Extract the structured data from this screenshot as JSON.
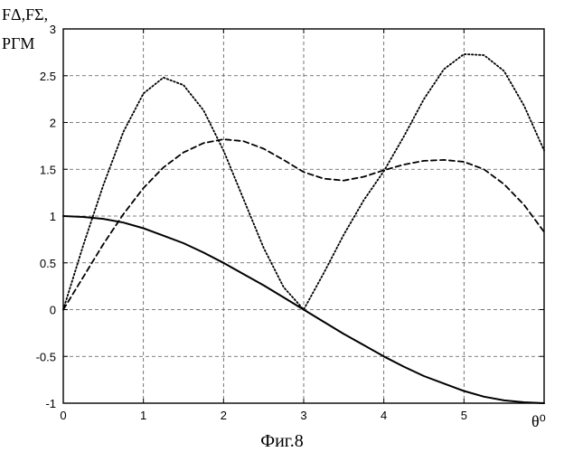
{
  "chart_data": {
    "type": "line",
    "ylabel_line1": "FΔ,FΣ,",
    "ylabel_line2": "PΓM",
    "xlabel": "θ⁰",
    "caption": "Фиг.8",
    "xlim": [
      0,
      6
    ],
    "ylim": [
      -1,
      3
    ],
    "xticks": [
      0,
      1,
      2,
      3,
      4,
      5
    ],
    "xtick_labels": [
      "0",
      "1",
      "2",
      "3",
      "4",
      "5"
    ],
    "yticks": [
      -1,
      -0.5,
      0,
      0.5,
      1,
      1.5,
      2,
      2.5,
      3
    ],
    "ytick_labels": [
      "-1",
      "-0.5",
      "0",
      "0.5",
      "1",
      "1.5",
      "2",
      "2.5",
      "3"
    ],
    "grid": true,
    "series": [
      {
        "style": "solid",
        "x": [
          0,
          0.25,
          0.5,
          0.75,
          1,
          1.25,
          1.5,
          1.75,
          2,
          2.25,
          2.5,
          2.75,
          3,
          3.25,
          3.5,
          3.75,
          4,
          4.25,
          4.5,
          4.75,
          5,
          5.25,
          5.5,
          5.75,
          6
        ],
        "y": [
          1.0,
          0.99,
          0.97,
          0.93,
          0.87,
          0.79,
          0.71,
          0.61,
          0.5,
          0.38,
          0.26,
          0.13,
          0.0,
          -0.13,
          -0.26,
          -0.38,
          -0.5,
          -0.61,
          -0.71,
          -0.79,
          -0.87,
          -0.93,
          -0.97,
          -0.99,
          -1.0
        ]
      },
      {
        "style": "dashed",
        "x": [
          0,
          0.25,
          0.5,
          0.75,
          1,
          1.25,
          1.5,
          1.75,
          2,
          2.25,
          2.5,
          2.75,
          3,
          3.25,
          3.5,
          3.75,
          4,
          4.25,
          4.5,
          4.75,
          5,
          5.25,
          5.5,
          5.75,
          6
        ],
        "y": [
          0.0,
          0.35,
          0.7,
          1.02,
          1.3,
          1.52,
          1.68,
          1.78,
          1.82,
          1.8,
          1.72,
          1.6,
          1.47,
          1.4,
          1.38,
          1.42,
          1.49,
          1.55,
          1.59,
          1.6,
          1.58,
          1.5,
          1.34,
          1.12,
          0.83
        ]
      },
      {
        "style": "dotted",
        "x": [
          0,
          0.25,
          0.5,
          0.75,
          1,
          1.25,
          1.5,
          1.75,
          2,
          2.25,
          2.5,
          2.75,
          3,
          3.25,
          3.5,
          3.75,
          4,
          4.25,
          4.5,
          4.75,
          5,
          5.25,
          5.5,
          5.75,
          6
        ],
        "y": [
          0.0,
          0.69,
          1.33,
          1.9,
          2.31,
          2.48,
          2.4,
          2.13,
          1.7,
          1.18,
          0.66,
          0.24,
          0.0,
          0.39,
          0.8,
          1.17,
          1.48,
          1.85,
          2.25,
          2.57,
          2.73,
          2.72,
          2.55,
          2.18,
          1.7
        ]
      }
    ]
  }
}
